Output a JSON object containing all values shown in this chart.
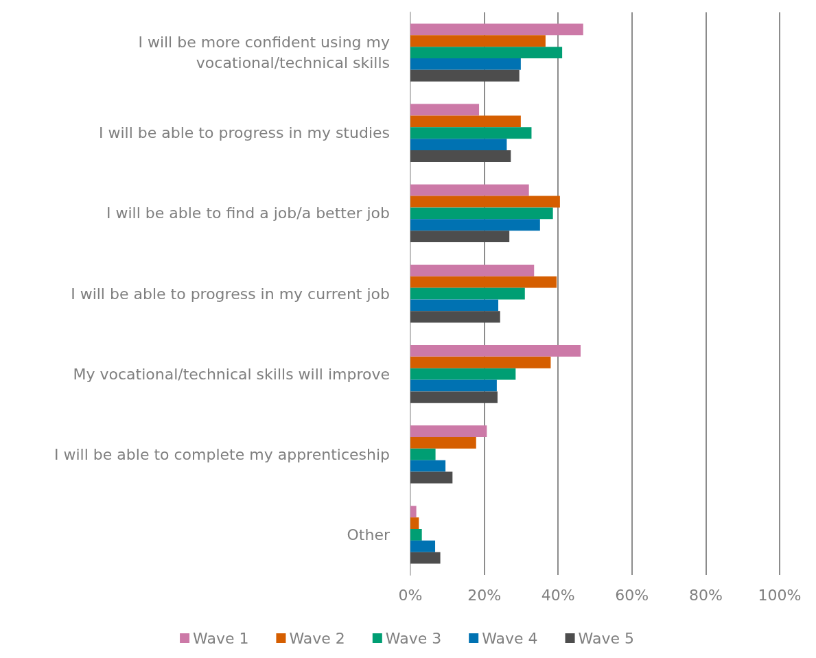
{
  "chart_data": {
    "type": "bar",
    "orientation": "horizontal",
    "categories": [
      "I will be more confident using my\nvocational/technical skills",
      "I will be able to progress in my studies",
      "I will be able to find a job/a better job",
      "I will be able to progress in my current job",
      "My vocational/technical skills will improve",
      "I will be able to complete my apprenticeship",
      "Other"
    ],
    "series": [
      {
        "name": "Wave 1",
        "color": "#cc79a7",
        "values": [
          46.8,
          18.6,
          32.1,
          33.5,
          46.1,
          20.7,
          1.6
        ]
      },
      {
        "name": "Wave 2",
        "color": "#d55e00",
        "values": [
          36.6,
          29.9,
          40.5,
          39.6,
          38,
          17.8,
          2.3
        ]
      },
      {
        "name": "Wave 3",
        "color": "#009e73",
        "values": [
          41.1,
          32.8,
          38.6,
          31,
          28.5,
          6.8,
          3.1
        ]
      },
      {
        "name": "Wave 4",
        "color": "#0072b2",
        "values": [
          29.9,
          26.1,
          35.1,
          23.8,
          23.4,
          9.5,
          6.7
        ]
      },
      {
        "name": "Wave 5",
        "color": "#4d4d4d",
        "values": [
          29.5,
          27.2,
          26.8,
          24.3,
          23.6,
          11.4,
          8.1
        ]
      }
    ],
    "xlim": [
      0,
      100
    ],
    "xticks": [
      {
        "value": 0,
        "label": "0%"
      },
      {
        "value": 20,
        "label": "20%"
      },
      {
        "value": 40,
        "label": "40%"
      },
      {
        "value": 60,
        "label": "60%"
      },
      {
        "value": 80,
        "label": "80%"
      },
      {
        "value": 100,
        "label": "100%"
      }
    ],
    "grid": "x",
    "legend": "bottom"
  }
}
